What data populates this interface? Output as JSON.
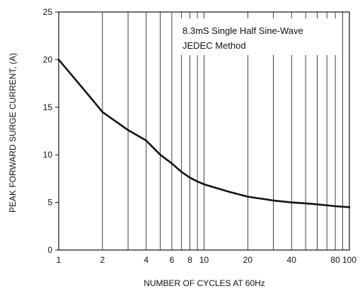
{
  "chart_data": {
    "type": "line",
    "xscale": "log",
    "xlim": [
      1,
      100
    ],
    "ylim": [
      0,
      25
    ],
    "xlabel": "NUMBER OF CYCLES AT 60Hz",
    "ylabel": "PEAK  FORWARD SURGE CURRENT, (A)",
    "annotation": [
      "8.3mS Single Half Sine-Wave",
      "JEDEC Method"
    ],
    "x_ticks": [
      {
        "v": 1,
        "label": "1"
      },
      {
        "v": 2,
        "label": "2"
      },
      {
        "v": 3,
        "label": ""
      },
      {
        "v": 4,
        "label": "4"
      },
      {
        "v": 5,
        "label": ""
      },
      {
        "v": 6,
        "label": "6"
      },
      {
        "v": 7,
        "label": ""
      },
      {
        "v": 8,
        "label": "8"
      },
      {
        "v": 9,
        "label": ""
      },
      {
        "v": 10,
        "label": "10"
      },
      {
        "v": 20,
        "label": "20"
      },
      {
        "v": 30,
        "label": ""
      },
      {
        "v": 40,
        "label": "40"
      },
      {
        "v": 50,
        "label": ""
      },
      {
        "v": 60,
        "label": ""
      },
      {
        "v": 70,
        "label": ""
      },
      {
        "v": 80,
        "label": "80"
      },
      {
        "v": 90,
        "label": ""
      },
      {
        "v": 100,
        "label": "100"
      }
    ],
    "y_ticks": [
      0,
      5,
      10,
      15,
      20,
      25
    ],
    "grid": "vertical",
    "series": [
      {
        "color": "#111111",
        "x": [
          1,
          1.5,
          2,
          3,
          4,
          5,
          6,
          7,
          8,
          9,
          10,
          15,
          20,
          30,
          40,
          50,
          60,
          70,
          80,
          90,
          100
        ],
        "y": [
          20,
          16.8,
          14.5,
          12.6,
          11.5,
          10.0,
          9.1,
          8.2,
          7.6,
          7.2,
          6.9,
          6.1,
          5.6,
          5.2,
          5.0,
          4.9,
          4.8,
          4.7,
          4.6,
          4.55,
          4.5
        ]
      }
    ]
  }
}
